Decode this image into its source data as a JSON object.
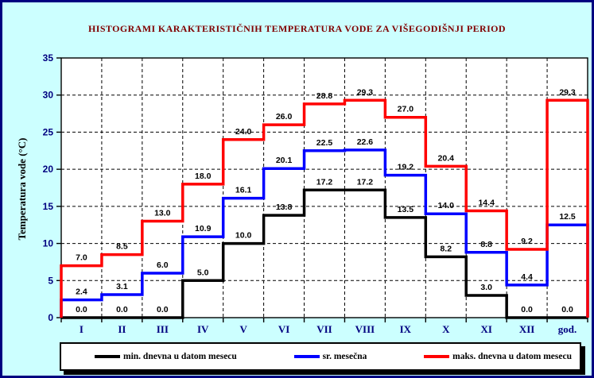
{
  "window": {
    "background": "#CCFFFF",
    "border_color": "#000080",
    "plot_background": "#FFFFFF"
  },
  "title": "HISTOGRAMI KARAKTERISTIČNIH TEMPERATURA VODE ZA VIŠEGODIŠNJI PERIOD",
  "title_color": "#800000",
  "axis": {
    "y_title": "Temperatura vode (°C)",
    "tick_label_color": "#000080",
    "y_ticks": [
      0,
      5,
      10,
      15,
      20,
      25,
      30,
      35
    ]
  },
  "chart_data": {
    "type": "line",
    "subtype": "step-histogram",
    "title": "HISTOGRAMI KARAKTERISTIČNIH TEMPERATURA VODE ZA VIŠEGODIŠNJI PERIOD",
    "xlabel": "",
    "ylabel": "Temperatura vode (°C)",
    "categories": [
      "I",
      "II",
      "III",
      "IV",
      "V",
      "VI",
      "VII",
      "VIII",
      "IX",
      "X",
      "XI",
      "XII",
      "god."
    ],
    "series": [
      {
        "name": "min. dnevna u datom mesecu",
        "color": "#000000",
        "values": [
          0.0,
          0.0,
          0.0,
          5.0,
          10.0,
          13.8,
          17.2,
          17.2,
          13.5,
          8.2,
          3.0,
          0.0,
          0.0
        ]
      },
      {
        "name": "sr. mesečna",
        "color": "#0000FF",
        "values": [
          2.4,
          3.1,
          6.0,
          10.9,
          16.1,
          20.1,
          22.5,
          22.6,
          19.2,
          14.0,
          8.8,
          4.4,
          12.5
        ]
      },
      {
        "name": "maks. dnevna u datom mesecu",
        "color": "#FF0000",
        "values": [
          7.0,
          8.5,
          13.0,
          18.0,
          24.0,
          26.0,
          28.8,
          29.3,
          27.0,
          20.4,
          14.4,
          9.2,
          29.3
        ]
      }
    ],
    "ylim": [
      0,
      35
    ],
    "y_tick_step": 5,
    "grid": true,
    "grid_style": "dashed",
    "data_labels": true,
    "legend_position": "bottom"
  }
}
